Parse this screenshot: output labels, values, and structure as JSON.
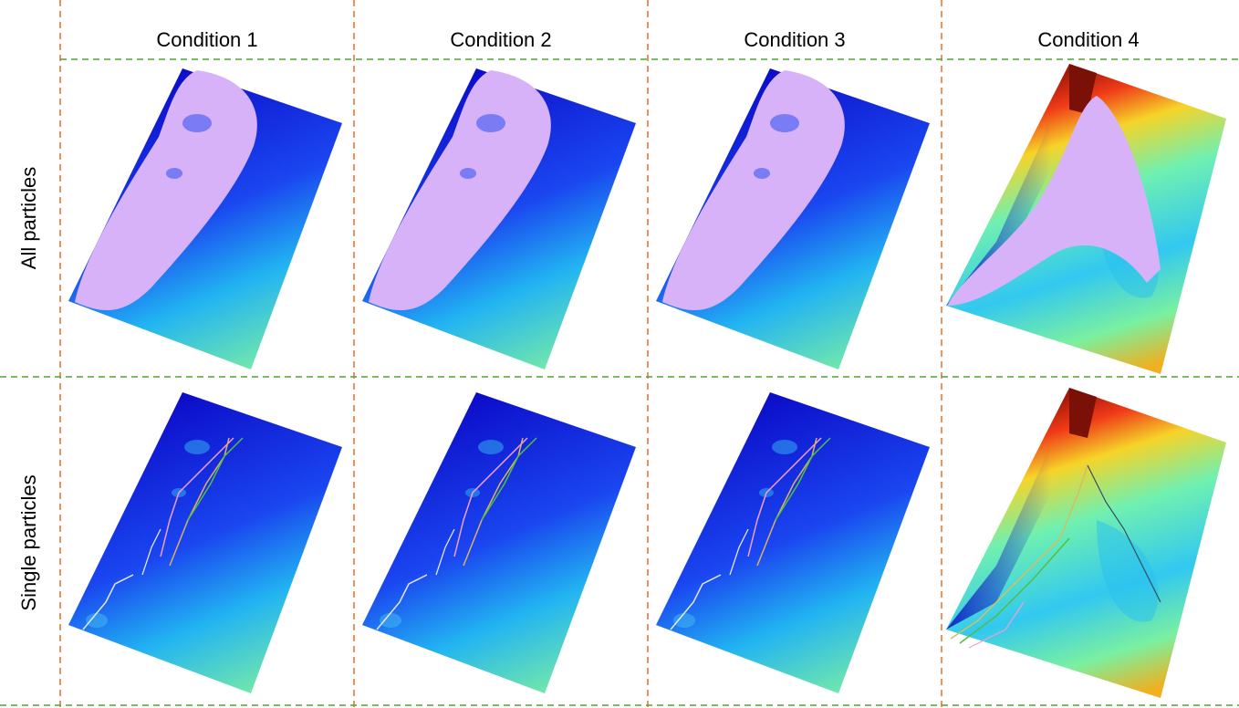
{
  "columns": [
    "Condition 1",
    "Condition 2",
    "Condition 3",
    "Condition 4"
  ],
  "rows": [
    "All particles",
    "Single particles"
  ]
}
